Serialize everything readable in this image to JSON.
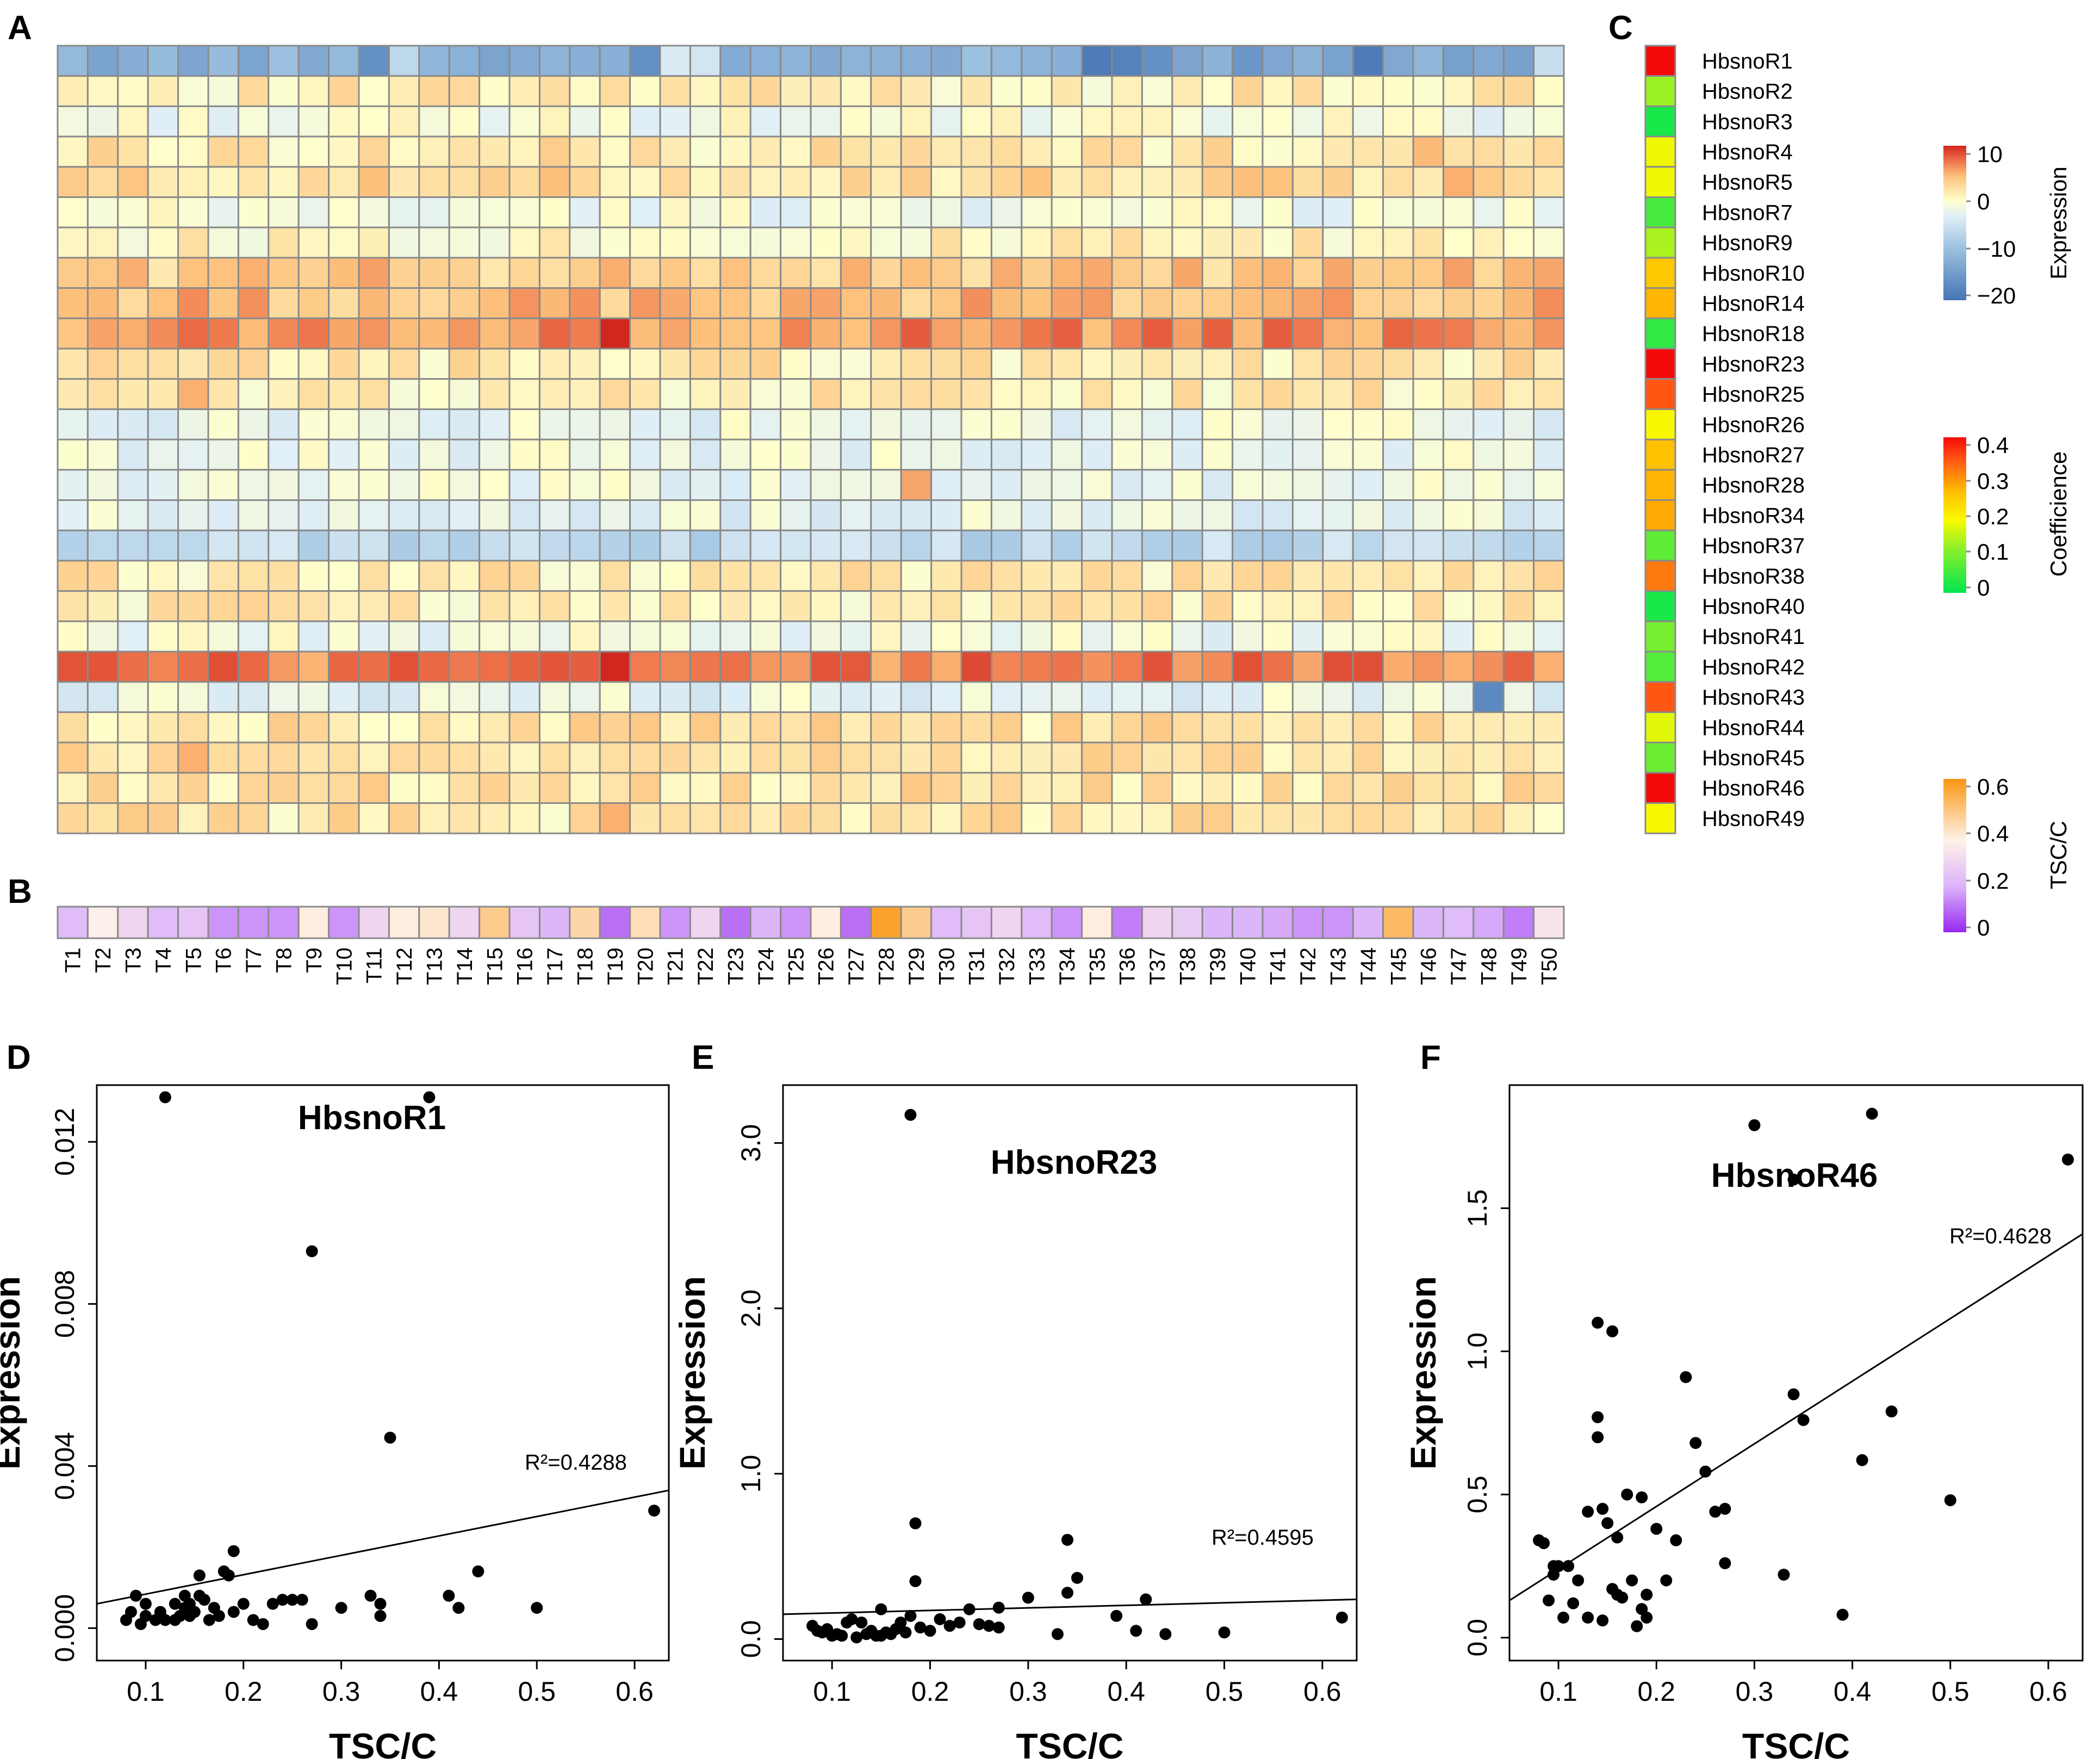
{
  "panel_labels": [
    "A",
    "B",
    "C",
    "D",
    "E",
    "F"
  ],
  "chart_data": [
    {
      "id": "A",
      "type": "heatmap",
      "title": "",
      "samples": [
        "T1",
        "T2",
        "T3",
        "T4",
        "T5",
        "T6",
        "T7",
        "T8",
        "T9",
        "T10",
        "T11",
        "T12",
        "T13",
        "T14",
        "T15",
        "T16",
        "T17",
        "T18",
        "T19",
        "T20",
        "T21",
        "T22",
        "T23",
        "T24",
        "T25",
        "T26",
        "T27",
        "T28",
        "T29",
        "T30",
        "T31",
        "T32",
        "T33",
        "T34",
        "T35",
        "T36",
        "T37",
        "T38",
        "T39",
        "T40",
        "T41",
        "T42",
        "T43",
        "T44",
        "T45",
        "T46",
        "T47",
        "T48",
        "T49",
        "T50"
      ],
      "rows": [
        "HbsnoR1",
        "HbsnoR2",
        "HbsnoR3",
        "HbsnoR4",
        "HbsnoR5",
        "HbsnoR7",
        "HbsnoR9",
        "HbsnoR10",
        "HbsnoR14",
        "HbsnoR18",
        "HbsnoR23",
        "HbsnoR25",
        "HbsnoR26",
        "HbsnoR27",
        "HbsnoR28",
        "HbsnoR34",
        "HbsnoR37",
        "HbsnoR38",
        "HbsnoR40",
        "HbsnoR41",
        "HbsnoR42",
        "HbsnoR43",
        "HbsnoR44",
        "HbsnoR45",
        "HbsnoR46",
        "HbsnoR49"
      ],
      "legend": {
        "title": "Expression",
        "ticks": [
          "10",
          "0",
          "−10",
          "−20"
        ],
        "range": [
          -22,
          12
        ]
      },
      "row_base": [
        -13,
        1.2,
        -1.2,
        1.8,
        2.8,
        -1.5,
        0.6,
        4.3,
        5.2,
        7.2,
        1.6,
        1.2,
        -2.2,
        -2,
        -2.3,
        -2.8,
        -6.8,
        1.4,
        1.3,
        -1.6,
        8.3,
        -2.6,
        2.2,
        2.3,
        2.2,
        2
      ],
      "overrides": [
        {
          "row": 0,
          "col": 10,
          "value": -18
        },
        {
          "row": 0,
          "col": 11,
          "value": -7
        },
        {
          "row": 0,
          "col": 19,
          "value": -18
        },
        {
          "row": 0,
          "col": 20,
          "value": -4
        },
        {
          "row": 0,
          "col": 21,
          "value": -5
        },
        {
          "row": 0,
          "col": 34,
          "value": -21
        },
        {
          "row": 0,
          "col": 35,
          "value": -20
        },
        {
          "row": 0,
          "col": 36,
          "value": -18
        },
        {
          "row": 0,
          "col": 43,
          "value": -21
        },
        {
          "row": 0,
          "col": 39,
          "value": -17
        },
        {
          "row": 0,
          "col": 49,
          "value": -6
        },
        {
          "row": 3,
          "col": 45,
          "value": 5.5
        },
        {
          "row": 4,
          "col": 46,
          "value": 6
        },
        {
          "row": 9,
          "col": 18,
          "value": 12
        },
        {
          "row": 9,
          "col": 33,
          "value": 9.5
        },
        {
          "row": 11,
          "col": 4,
          "value": 6
        },
        {
          "row": 14,
          "col": 28,
          "value": 6.5
        },
        {
          "row": 20,
          "col": 18,
          "value": 12
        },
        {
          "row": 20,
          "col": 1,
          "value": 10
        },
        {
          "row": 21,
          "col": 47,
          "value": -19
        },
        {
          "row": 23,
          "col": 4,
          "value": 6
        },
        {
          "row": 25,
          "col": 18,
          "value": 6
        }
      ]
    },
    {
      "id": "B",
      "type": "heatmap",
      "title": "",
      "legend": {
        "title": "TSC/C",
        "ticks": [
          "0.6",
          "0.4",
          "0.2",
          "0"
        ],
        "range": [
          0,
          0.65
        ]
      },
      "values": [
        0.22,
        0.38,
        0.3,
        0.22,
        0.25,
        0.15,
        0.15,
        0.15,
        0.4,
        0.15,
        0.3,
        0.4,
        0.42,
        0.3,
        0.5,
        0.25,
        0.2,
        0.47,
        0.1,
        0.45,
        0.15,
        0.3,
        0.1,
        0.2,
        0.15,
        0.4,
        0.1,
        0.62,
        0.5,
        0.22,
        0.25,
        0.3,
        0.22,
        0.15,
        0.4,
        0.12,
        0.3,
        0.27,
        0.2,
        0.2,
        0.18,
        0.15,
        0.15,
        0.2,
        0.55,
        0.2,
        0.22,
        0.18,
        0.12,
        0.35
      ]
    },
    {
      "id": "C",
      "type": "heatmap",
      "title": "",
      "legend": {
        "title": "Coefficience",
        "ticks": [
          "0.4",
          "0.3",
          "0.2",
          "0.1",
          "0"
        ],
        "range": [
          0,
          0.42
        ]
      },
      "labels": [
        "HbsnoR1",
        "HbsnoR2",
        "HbsnoR3",
        "HbsnoR4",
        "HbsnoR5",
        "HbsnoR7",
        "HbsnoR9",
        "HbsnoR10",
        "HbsnoR14",
        "HbsnoR18",
        "HbsnoR23",
        "HbsnoR25",
        "HbsnoR26",
        "HbsnoR27",
        "HbsnoR28",
        "HbsnoR34",
        "HbsnoR37",
        "HbsnoR38",
        "HbsnoR40",
        "HbsnoR41",
        "HbsnoR42",
        "HbsnoR43",
        "HbsnoR44",
        "HbsnoR45",
        "HbsnoR46",
        "HbsnoR49"
      ],
      "values": [
        0.42,
        0.13,
        0.02,
        0.19,
        0.19,
        0.06,
        0.14,
        0.26,
        0.28,
        0.04,
        0.42,
        0.36,
        0.2,
        0.27,
        0.28,
        0.29,
        0.08,
        0.33,
        0.02,
        0.1,
        0.07,
        0.36,
        0.18,
        0.09,
        0.42,
        0.2
      ]
    },
    {
      "id": "D",
      "type": "scatter",
      "title": "HbsnoR1",
      "xlabel": "TSC/C",
      "ylabel": "Expression",
      "xlim": [
        0.05,
        0.635
      ],
      "ylim": [
        -0.0008,
        0.0134
      ],
      "xticks": [
        "0.1",
        "0.2",
        "0.3",
        "0.4",
        "0.5",
        "0.6"
      ],
      "yticks": [
        "0.000",
        "0.004",
        "0.008",
        "0.012"
      ],
      "annotation": "R²=0.4288",
      "fit_line": [
        [
          0.05,
          0.0006
        ],
        [
          0.635,
          0.0034
        ]
      ],
      "x": [
        0.08,
        0.09,
        0.085,
        0.095,
        0.1,
        0.1,
        0.11,
        0.115,
        0.12,
        0.13,
        0.13,
        0.135,
        0.14,
        0.14,
        0.145,
        0.15,
        0.155,
        0.16,
        0.165,
        0.17,
        0.175,
        0.18,
        0.19,
        0.19,
        0.2,
        0.21,
        0.22,
        0.23,
        0.24,
        0.25,
        0.26,
        0.27,
        0.3,
        0.33,
        0.34,
        0.34,
        0.35,
        0.39,
        0.41,
        0.42,
        0.44,
        0.5,
        0.62,
        0.12,
        0.27,
        0.155,
        0.185,
        0.145
      ],
      "y": [
        0.0002,
        0.0008,
        0.0004,
        0.0001,
        0.0006,
        0.0003,
        0.0002,
        0.0004,
        0.0131,
        0.0002,
        0.0006,
        0.0003,
        0.0005,
        0.0008,
        0.0006,
        0.0004,
        0.0013,
        0.0007,
        0.0002,
        0.0005,
        0.0003,
        0.0014,
        0.0019,
        0.0004,
        0.0006,
        0.0002,
        0.0001,
        0.0006,
        0.0007,
        0.0007,
        0.0007,
        0.0001,
        0.0005,
        0.0008,
        0.0006,
        0.0003,
        0.0047,
        0.0131,
        0.0008,
        0.0005,
        0.0014,
        0.0005,
        0.0029,
        0.0002,
        0.0093,
        0.0008,
        0.0013,
        0.0003
      ]
    },
    {
      "id": "E",
      "type": "scatter",
      "title": "HbsnoR23",
      "xlabel": "TSC/C",
      "ylabel": "Expression",
      "xlim": [
        0.05,
        0.635
      ],
      "ylim": [
        -0.13,
        3.35
      ],
      "xticks": [
        "0.1",
        "0.2",
        "0.3",
        "0.4",
        "0.5",
        "0.6"
      ],
      "yticks": [
        "0.0",
        "1.0",
        "2.0",
        "3.0"
      ],
      "annotation": "R²=0.4595",
      "fit_line": [
        [
          0.05,
          0.15
        ],
        [
          0.635,
          0.24
        ]
      ],
      "x": [
        0.08,
        0.085,
        0.09,
        0.095,
        0.1,
        0.105,
        0.11,
        0.115,
        0.12,
        0.125,
        0.13,
        0.135,
        0.14,
        0.145,
        0.15,
        0.155,
        0.16,
        0.165,
        0.17,
        0.175,
        0.18,
        0.185,
        0.185,
        0.19,
        0.2,
        0.21,
        0.22,
        0.23,
        0.24,
        0.25,
        0.26,
        0.27,
        0.27,
        0.3,
        0.33,
        0.34,
        0.34,
        0.35,
        0.39,
        0.41,
        0.42,
        0.44,
        0.5,
        0.62,
        0.18,
        0.15
      ],
      "y": [
        0.08,
        0.05,
        0.04,
        0.06,
        0.02,
        0.03,
        0.02,
        0.1,
        0.12,
        0.01,
        0.1,
        0.03,
        0.05,
        0.02,
        0.18,
        0.04,
        0.03,
        0.06,
        0.1,
        0.04,
        0.14,
        0.35,
        0.7,
        0.07,
        0.05,
        0.12,
        0.08,
        0.1,
        0.18,
        0.09,
        0.08,
        0.19,
        0.07,
        0.25,
        0.03,
        0.6,
        0.28,
        0.37,
        0.14,
        0.05,
        0.24,
        0.03,
        0.04,
        0.13,
        3.17,
        0.02
      ]
    },
    {
      "id": "F",
      "type": "scatter",
      "title": "HbsnoR46",
      "xlabel": "TSC/C",
      "ylabel": "Expression",
      "xlim": [
        0.05,
        0.635
      ],
      "ylim": [
        -0.08,
        1.93
      ],
      "xticks": [
        "0.1",
        "0.2",
        "0.3",
        "0.4",
        "0.5",
        "0.6"
      ],
      "yticks": [
        "0.0",
        "0.5",
        "1.0",
        "1.5"
      ],
      "annotation": "R²=0.4628",
      "fit_line": [
        [
          0.05,
          0.13
        ],
        [
          0.635,
          1.41
        ]
      ],
      "x": [
        0.08,
        0.085,
        0.09,
        0.095,
        0.1,
        0.105,
        0.11,
        0.115,
        0.12,
        0.13,
        0.14,
        0.14,
        0.14,
        0.145,
        0.145,
        0.15,
        0.155,
        0.155,
        0.16,
        0.16,
        0.165,
        0.17,
        0.175,
        0.18,
        0.185,
        0.185,
        0.19,
        0.19,
        0.2,
        0.21,
        0.22,
        0.23,
        0.24,
        0.25,
        0.26,
        0.27,
        0.27,
        0.3,
        0.33,
        0.34,
        0.34,
        0.35,
        0.39,
        0.41,
        0.42,
        0.44,
        0.5,
        0.62,
        0.095,
        0.13
      ],
      "y": [
        0.34,
        0.33,
        0.13,
        0.22,
        0.25,
        0.07,
        0.25,
        0.12,
        0.2,
        0.07,
        1.1,
        0.77,
        0.7,
        0.45,
        0.06,
        0.4,
        1.07,
        0.17,
        0.15,
        0.35,
        0.14,
        0.5,
        0.2,
        0.04,
        0.1,
        0.49,
        0.15,
        0.07,
        0.38,
        0.2,
        0.34,
        0.91,
        0.68,
        0.58,
        0.44,
        0.45,
        0.26,
        1.79,
        0.22,
        0.85,
        1.6,
        0.76,
        0.08,
        0.62,
        1.83,
        0.79,
        0.48,
        1.67,
        0.25,
        0.44
      ]
    }
  ]
}
